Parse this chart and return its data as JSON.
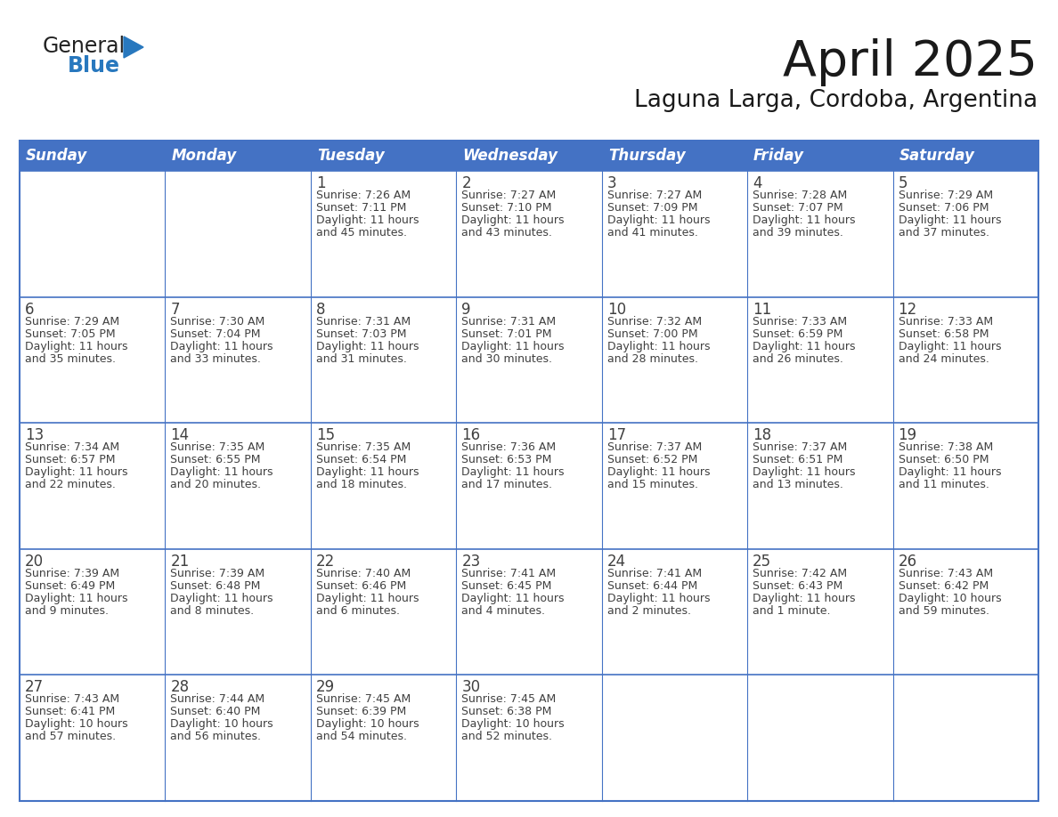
{
  "title": "April 2025",
  "subtitle": "Laguna Larga, Cordoba, Argentina",
  "header_bg": "#4472C4",
  "header_text_color": "#FFFFFF",
  "cell_bg": "#FFFFFF",
  "border_color": "#4472C4",
  "text_color": "#404040",
  "days_of_week": [
    "Sunday",
    "Monday",
    "Tuesday",
    "Wednesday",
    "Thursday",
    "Friday",
    "Saturday"
  ],
  "calendar_data": [
    [
      {
        "day": "",
        "sunrise": "",
        "sunset": "",
        "daylight": ""
      },
      {
        "day": "",
        "sunrise": "",
        "sunset": "",
        "daylight": ""
      },
      {
        "day": "1",
        "sunrise": "Sunrise: 7:26 AM",
        "sunset": "Sunset: 7:11 PM",
        "daylight": "Daylight: 11 hours\nand 45 minutes."
      },
      {
        "day": "2",
        "sunrise": "Sunrise: 7:27 AM",
        "sunset": "Sunset: 7:10 PM",
        "daylight": "Daylight: 11 hours\nand 43 minutes."
      },
      {
        "day": "3",
        "sunrise": "Sunrise: 7:27 AM",
        "sunset": "Sunset: 7:09 PM",
        "daylight": "Daylight: 11 hours\nand 41 minutes."
      },
      {
        "day": "4",
        "sunrise": "Sunrise: 7:28 AM",
        "sunset": "Sunset: 7:07 PM",
        "daylight": "Daylight: 11 hours\nand 39 minutes."
      },
      {
        "day": "5",
        "sunrise": "Sunrise: 7:29 AM",
        "sunset": "Sunset: 7:06 PM",
        "daylight": "Daylight: 11 hours\nand 37 minutes."
      }
    ],
    [
      {
        "day": "6",
        "sunrise": "Sunrise: 7:29 AM",
        "sunset": "Sunset: 7:05 PM",
        "daylight": "Daylight: 11 hours\nand 35 minutes."
      },
      {
        "day": "7",
        "sunrise": "Sunrise: 7:30 AM",
        "sunset": "Sunset: 7:04 PM",
        "daylight": "Daylight: 11 hours\nand 33 minutes."
      },
      {
        "day": "8",
        "sunrise": "Sunrise: 7:31 AM",
        "sunset": "Sunset: 7:03 PM",
        "daylight": "Daylight: 11 hours\nand 31 minutes."
      },
      {
        "day": "9",
        "sunrise": "Sunrise: 7:31 AM",
        "sunset": "Sunset: 7:01 PM",
        "daylight": "Daylight: 11 hours\nand 30 minutes."
      },
      {
        "day": "10",
        "sunrise": "Sunrise: 7:32 AM",
        "sunset": "Sunset: 7:00 PM",
        "daylight": "Daylight: 11 hours\nand 28 minutes."
      },
      {
        "day": "11",
        "sunrise": "Sunrise: 7:33 AM",
        "sunset": "Sunset: 6:59 PM",
        "daylight": "Daylight: 11 hours\nand 26 minutes."
      },
      {
        "day": "12",
        "sunrise": "Sunrise: 7:33 AM",
        "sunset": "Sunset: 6:58 PM",
        "daylight": "Daylight: 11 hours\nand 24 minutes."
      }
    ],
    [
      {
        "day": "13",
        "sunrise": "Sunrise: 7:34 AM",
        "sunset": "Sunset: 6:57 PM",
        "daylight": "Daylight: 11 hours\nand 22 minutes."
      },
      {
        "day": "14",
        "sunrise": "Sunrise: 7:35 AM",
        "sunset": "Sunset: 6:55 PM",
        "daylight": "Daylight: 11 hours\nand 20 minutes."
      },
      {
        "day": "15",
        "sunrise": "Sunrise: 7:35 AM",
        "sunset": "Sunset: 6:54 PM",
        "daylight": "Daylight: 11 hours\nand 18 minutes."
      },
      {
        "day": "16",
        "sunrise": "Sunrise: 7:36 AM",
        "sunset": "Sunset: 6:53 PM",
        "daylight": "Daylight: 11 hours\nand 17 minutes."
      },
      {
        "day": "17",
        "sunrise": "Sunrise: 7:37 AM",
        "sunset": "Sunset: 6:52 PM",
        "daylight": "Daylight: 11 hours\nand 15 minutes."
      },
      {
        "day": "18",
        "sunrise": "Sunrise: 7:37 AM",
        "sunset": "Sunset: 6:51 PM",
        "daylight": "Daylight: 11 hours\nand 13 minutes."
      },
      {
        "day": "19",
        "sunrise": "Sunrise: 7:38 AM",
        "sunset": "Sunset: 6:50 PM",
        "daylight": "Daylight: 11 hours\nand 11 minutes."
      }
    ],
    [
      {
        "day": "20",
        "sunrise": "Sunrise: 7:39 AM",
        "sunset": "Sunset: 6:49 PM",
        "daylight": "Daylight: 11 hours\nand 9 minutes."
      },
      {
        "day": "21",
        "sunrise": "Sunrise: 7:39 AM",
        "sunset": "Sunset: 6:48 PM",
        "daylight": "Daylight: 11 hours\nand 8 minutes."
      },
      {
        "day": "22",
        "sunrise": "Sunrise: 7:40 AM",
        "sunset": "Sunset: 6:46 PM",
        "daylight": "Daylight: 11 hours\nand 6 minutes."
      },
      {
        "day": "23",
        "sunrise": "Sunrise: 7:41 AM",
        "sunset": "Sunset: 6:45 PM",
        "daylight": "Daylight: 11 hours\nand 4 minutes."
      },
      {
        "day": "24",
        "sunrise": "Sunrise: 7:41 AM",
        "sunset": "Sunset: 6:44 PM",
        "daylight": "Daylight: 11 hours\nand 2 minutes."
      },
      {
        "day": "25",
        "sunrise": "Sunrise: 7:42 AM",
        "sunset": "Sunset: 6:43 PM",
        "daylight": "Daylight: 11 hours\nand 1 minute."
      },
      {
        "day": "26",
        "sunrise": "Sunrise: 7:43 AM",
        "sunset": "Sunset: 6:42 PM",
        "daylight": "Daylight: 10 hours\nand 59 minutes."
      }
    ],
    [
      {
        "day": "27",
        "sunrise": "Sunrise: 7:43 AM",
        "sunset": "Sunset: 6:41 PM",
        "daylight": "Daylight: 10 hours\nand 57 minutes."
      },
      {
        "day": "28",
        "sunrise": "Sunrise: 7:44 AM",
        "sunset": "Sunset: 6:40 PM",
        "daylight": "Daylight: 10 hours\nand 56 minutes."
      },
      {
        "day": "29",
        "sunrise": "Sunrise: 7:45 AM",
        "sunset": "Sunset: 6:39 PM",
        "daylight": "Daylight: 10 hours\nand 54 minutes."
      },
      {
        "day": "30",
        "sunrise": "Sunrise: 7:45 AM",
        "sunset": "Sunset: 6:38 PM",
        "daylight": "Daylight: 10 hours\nand 52 minutes."
      },
      {
        "day": "",
        "sunrise": "",
        "sunset": "",
        "daylight": ""
      },
      {
        "day": "",
        "sunrise": "",
        "sunset": "",
        "daylight": ""
      },
      {
        "day": "",
        "sunrise": "",
        "sunset": "",
        "daylight": ""
      }
    ]
  ]
}
